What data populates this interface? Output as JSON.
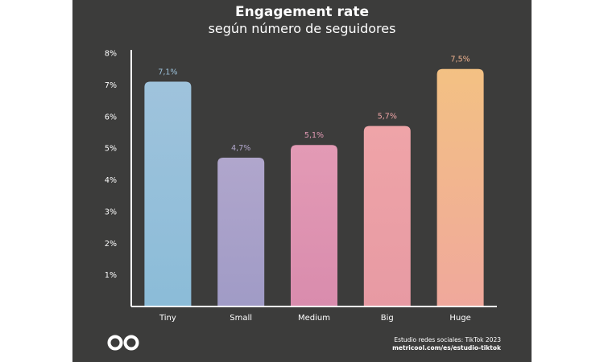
{
  "chart_data": {
    "type": "bar",
    "title": "Engagement rate",
    "subtitle": "según número de seguidores",
    "categories": [
      "Tiny",
      "Small",
      "Medium",
      "Big",
      "Huge"
    ],
    "values": [
      7.1,
      4.7,
      5.1,
      5.7,
      7.5
    ],
    "data_labels": [
      "7,1%",
      "4,7%",
      "5,1%",
      "5,7%",
      "7,5%"
    ],
    "ylim": [
      0,
      8
    ],
    "yticks": [
      1,
      2,
      3,
      4,
      5,
      6,
      7,
      8
    ],
    "ytick_labels": [
      "1%",
      "2%",
      "3%",
      "4%",
      "5%",
      "6%",
      "7%",
      "8%"
    ],
    "grid": false,
    "bar_gradient": [
      [
        "#9fc3dc",
        "#8bbcd8"
      ],
      [
        "#b0a6cc",
        "#a09bc6"
      ],
      [
        "#e39ab5",
        "#d98cad"
      ],
      [
        "#efa4a8",
        "#e79aa3"
      ],
      [
        "#f3c183",
        "#f0a89c"
      ]
    ],
    "label_colors": [
      "#9cc1da",
      "#b3a8cd",
      "#e39ab5",
      "#eda3a5",
      "#efb28f"
    ]
  },
  "footer": {
    "line1": "Estudio redes sociales: TikTok 2023",
    "line2": "metricool.com/es/estudio-tiktok"
  },
  "logo_icon": "metricool-infinity-icon"
}
